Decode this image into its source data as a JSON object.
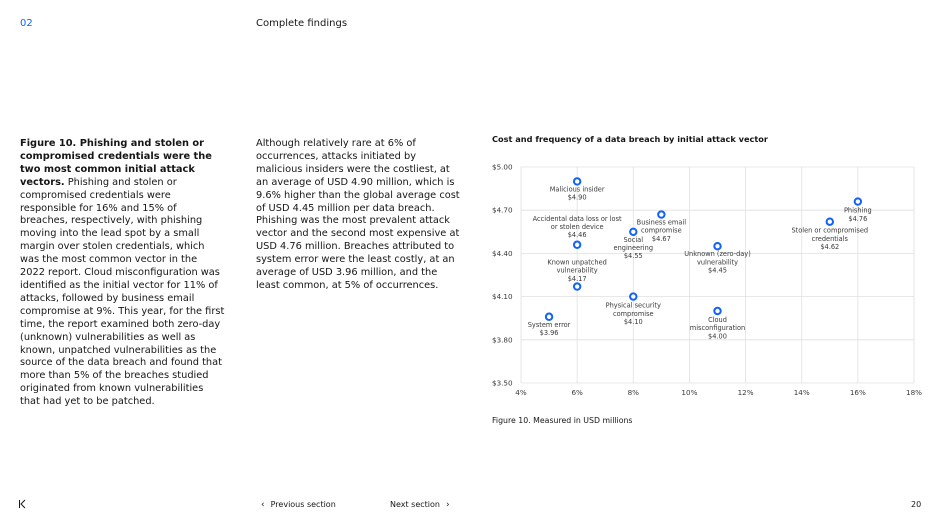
{
  "header": {
    "section_number": "02",
    "title": "Complete findings"
  },
  "body": {
    "col1_bold": "Figure 10. Phishing and stolen or compromised credentials were the two most common initial attack vectors.",
    "col1_text": "Phishing and stolen or compromised credentials were responsible for 16% and 15% of breaches, respectively, with phishing moving into the lead spot by a small margin over stolen credentials, which was the most common vector in the 2022 report. Cloud misconfiguration was identified as the initial vector for 11% of attacks, followed by business email compromise at 9%. This year, for the first time, the report examined both zero-day (unknown) vulnerabilities as well as known, unpatched vulnerabilities as the source of the data breach and found that more than 5% of the breaches studied originated from known vulnerabilities that had yet to be patched.",
    "col2_text": "Although relatively rare at 6% of occurrences, attacks initiated by malicious insiders were the costliest, at an average of USD 4.90 million, which is 9.6% higher than the global average cost of USD 4.45 million per data breach. Phishing was the most prevalent attack vector and the second most expensive at USD 4.76 million. Breaches attributed to system error were the least costly, at an average of USD 3.96 million, and the least common, at 5% of occurrences."
  },
  "chart_title": "Cost and frequency of a data breach by initial attack vector",
  "chart_caption": "Figure 10. Measured in USD millions",
  "colors": {
    "accent": "#0f62fe",
    "point": "#0f62fe",
    "grid": "#e0e0e0"
  },
  "chart_data": {
    "type": "scatter",
    "title": "Cost and frequency of a data breach by initial attack vector",
    "xlabel": "",
    "ylabel": "",
    "xlim": [
      4,
      18
    ],
    "ylim": [
      3.5,
      5.0
    ],
    "x_ticks": [
      "4%",
      "6%",
      "8%",
      "10%",
      "12%",
      "14%",
      "16%",
      "18%"
    ],
    "y_ticks": [
      "$3.50",
      "$3.80",
      "$4.10",
      "$4.40",
      "$4.70",
      "$5.00"
    ],
    "grid": true,
    "points": [
      {
        "label": "Malicious insider",
        "value_label": "$4.90",
        "x": 6.0,
        "y": 4.9
      },
      {
        "label": "Accidental data loss or lost or stolen device",
        "value_label": "$4.46",
        "x": 6.0,
        "y": 4.46
      },
      {
        "label": "Known unpatched vulnerability",
        "value_label": "$4.17",
        "x": 6.0,
        "y": 4.17
      },
      {
        "label": "System error",
        "value_label": "$3.96",
        "x": 5.0,
        "y": 3.96
      },
      {
        "label": "Business email compromise",
        "value_label": "$4.67",
        "x": 9.0,
        "y": 4.67
      },
      {
        "label": "Social engineering",
        "value_label": "$4.55",
        "x": 8.0,
        "y": 4.55
      },
      {
        "label": "Physical security compromise",
        "value_label": "$4.10",
        "x": 8.0,
        "y": 4.1
      },
      {
        "label": "Unknown (zero-day) vulnerability",
        "value_label": "$4.45",
        "x": 11.0,
        "y": 4.45
      },
      {
        "label": "Cloud misconfiguration",
        "value_label": "$4.00",
        "x": 11.0,
        "y": 4.0
      },
      {
        "label": "Stolen or compromised credentials",
        "value_label": "$4.62",
        "x": 15.0,
        "y": 4.62
      },
      {
        "label": "Phishing",
        "value_label": "$4.76",
        "x": 16.0,
        "y": 4.76
      }
    ]
  },
  "footer": {
    "first_icon": "first-page-icon",
    "prev_label": "Previous section",
    "next_label": "Next section",
    "page_number": "20"
  }
}
